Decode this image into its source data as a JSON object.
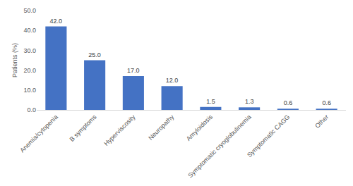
{
  "chart_data": {
    "type": "bar",
    "ylabel": "Patients (%)",
    "categories": [
      "Anemia/cytopenia",
      "B symptoms",
      "Hyperviscosity",
      "Neuropathy",
      "Amyloidosis",
      "Symptomatic cryoglobulinemia",
      "Symptomatic CAGG",
      "Other"
    ],
    "values": [
      42.0,
      25.0,
      17.0,
      12.0,
      1.5,
      1.3,
      0.6,
      0.6
    ],
    "value_labels": [
      "42.0",
      "25.0",
      "17.0",
      "12.0",
      "1.5",
      "1.3",
      "0.6",
      "0.6"
    ],
    "data_labels": true,
    "color": "#4472c4",
    "ylim": [
      0,
      50
    ],
    "yticks": [
      {
        "value": 0,
        "label": "0.0"
      },
      {
        "value": 10,
        "label": "10.0"
      },
      {
        "value": 20,
        "label": "20.0"
      },
      {
        "value": 30,
        "label": "30.0"
      },
      {
        "value": 40,
        "label": "40.0"
      },
      {
        "value": 50,
        "label": "50.0"
      }
    ],
    "grid": false
  }
}
